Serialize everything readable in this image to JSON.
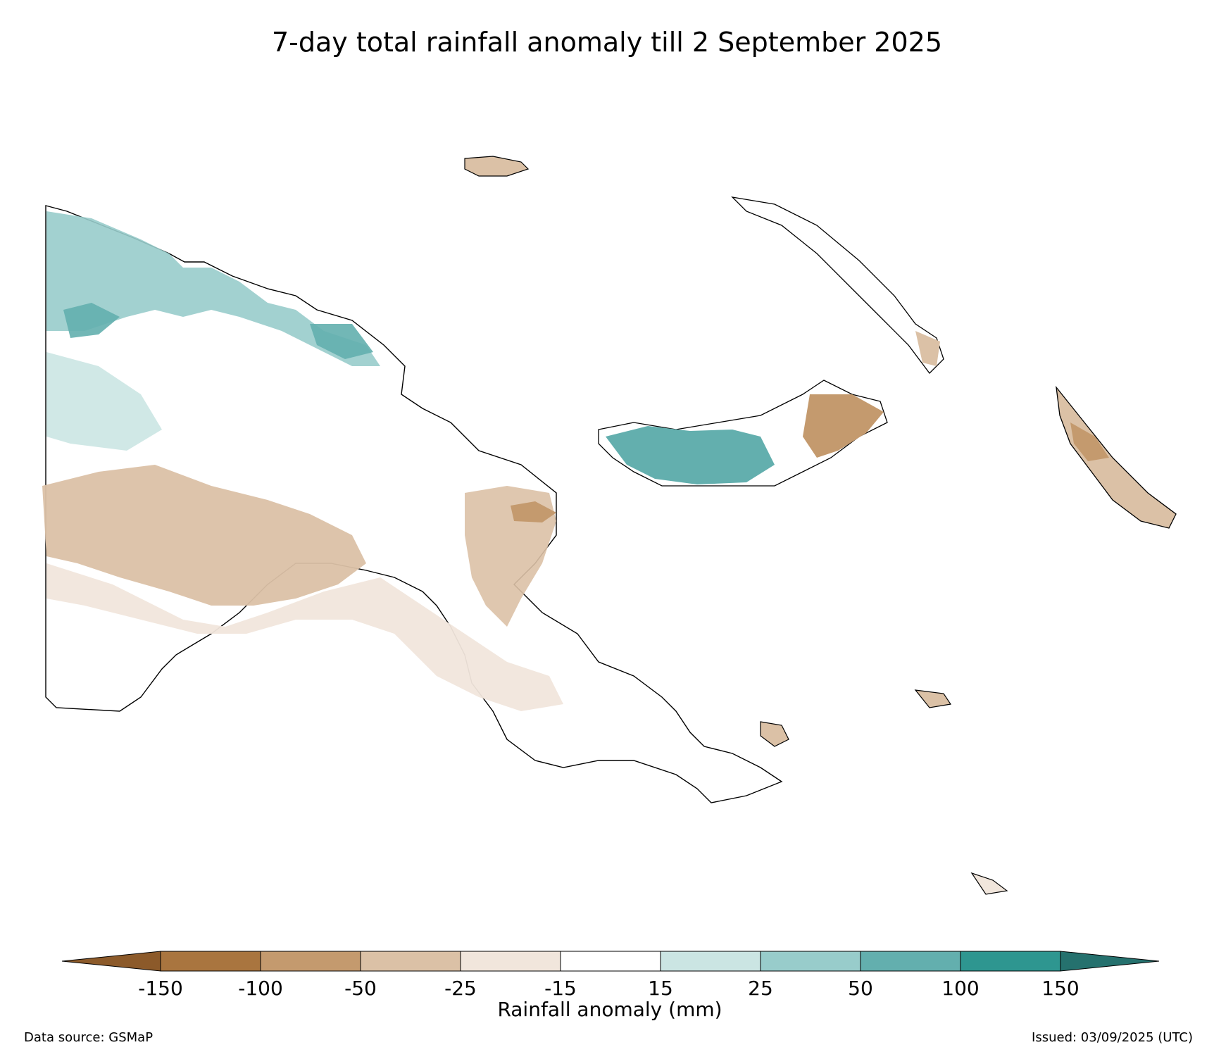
{
  "title": "7-day total rainfall anomaly till 2 September 2025",
  "colorbar": {
    "label": "Rainfall anomaly (mm)",
    "ticks": [
      "-150",
      "-100",
      "-50",
      "-25",
      "-15",
      "15",
      "25",
      "50",
      "100",
      "150"
    ],
    "colors": {
      "extend_low": "#8c5a2a",
      "bins": [
        "#a9753f",
        "#c49a6e",
        "#dbc1a6",
        "#f1e6dc",
        "#ffffff",
        "#cbe5e3",
        "#98cccb",
        "#63afae",
        "#2e9690"
      ],
      "extend_high": "#25716e"
    }
  },
  "legend_colors": {
    "coast_line": "#000000",
    "province_border": "#000000"
  },
  "footer": {
    "source": "Data source: GSMaP",
    "issued": "Issued: 03/09/2025 (UTC)"
  }
}
